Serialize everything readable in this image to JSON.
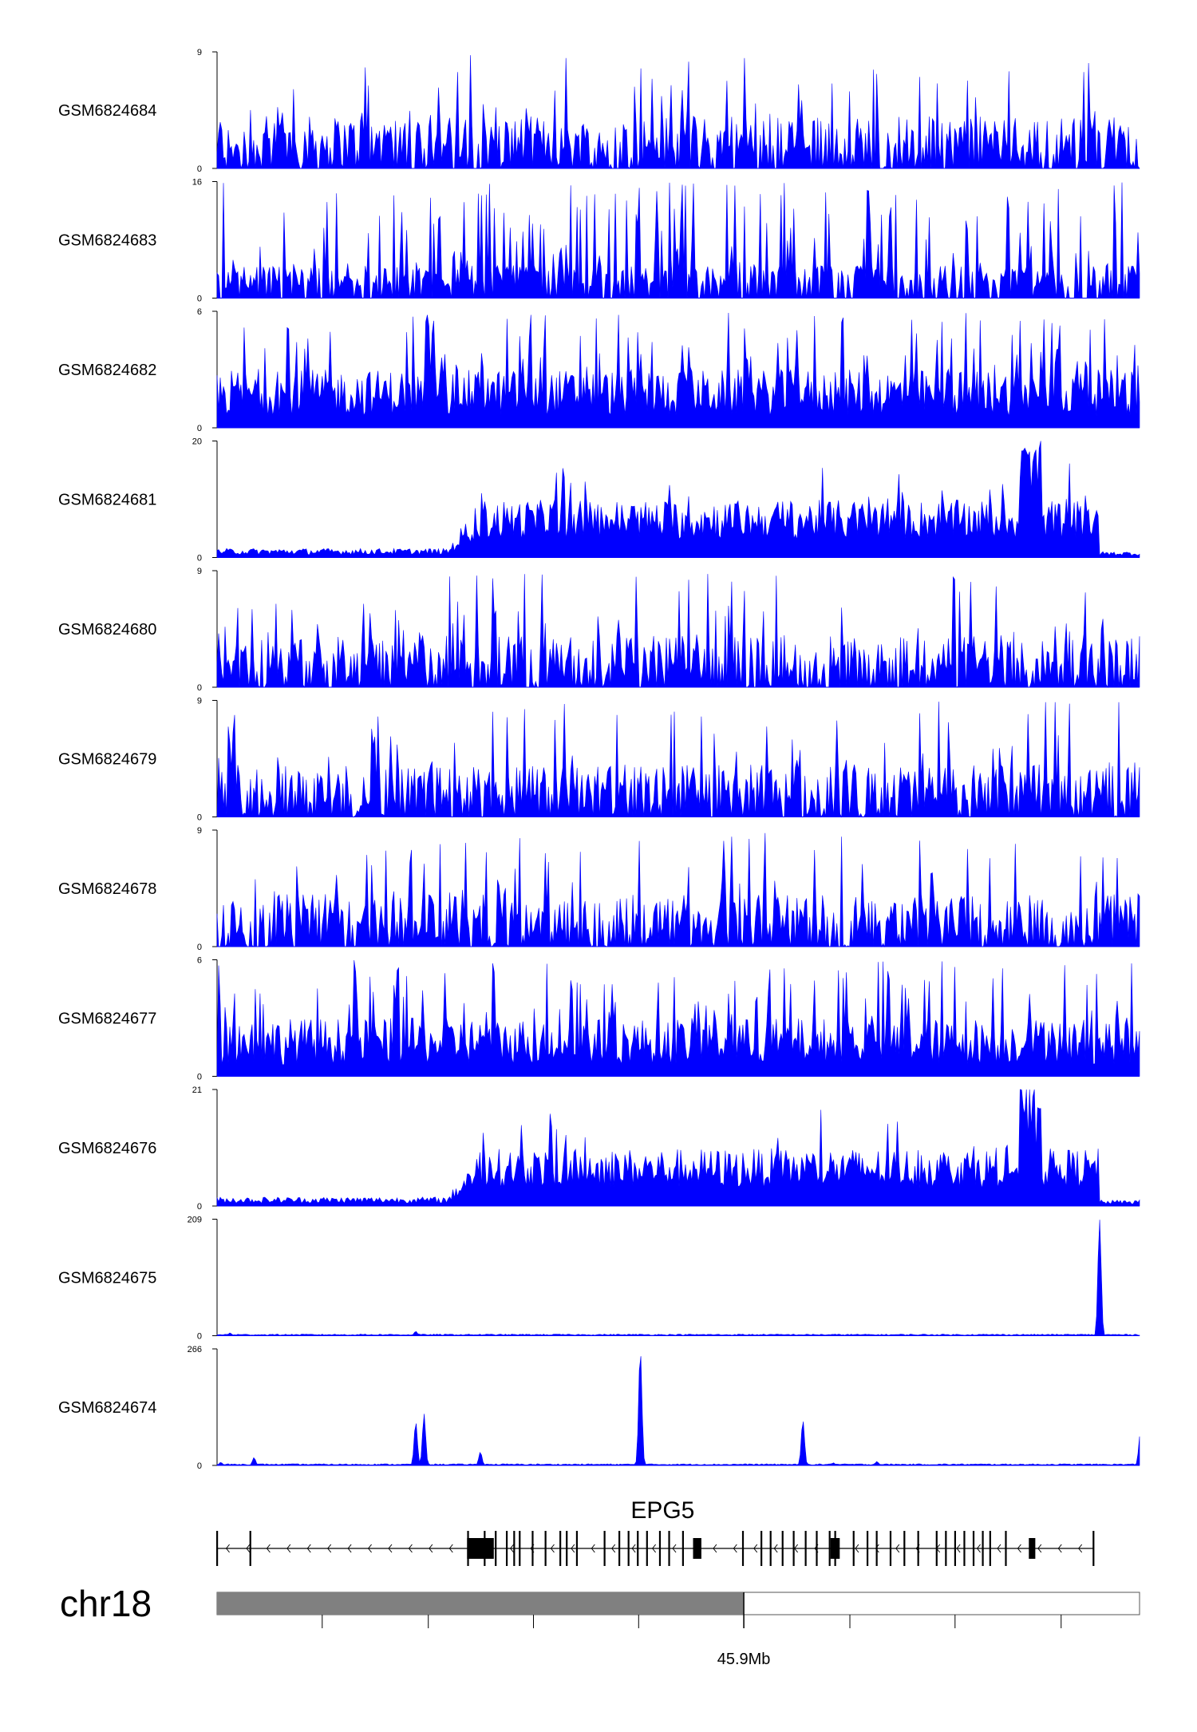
{
  "chart_data": {
    "type": "area",
    "title": "",
    "color": "#0000ff",
    "tracks": [
      {
        "name": "GSM6824684",
        "ymax": "9",
        "ymin": "0",
        "pattern": "spiky",
        "max": 9
      },
      {
        "name": "GSM6824683",
        "ymax": "16",
        "ymin": "0",
        "pattern": "sparse",
        "max": 16
      },
      {
        "name": "GSM6824682",
        "ymax": "6",
        "ymin": "0",
        "pattern": "dense",
        "max": 6
      },
      {
        "name": "GSM6824681",
        "ymax": "20",
        "ymin": "0",
        "pattern": "broad",
        "max": 20
      },
      {
        "name": "GSM6824680",
        "ymax": "9",
        "ymin": "0",
        "pattern": "spiky",
        "max": 9
      },
      {
        "name": "GSM6824679",
        "ymax": "9",
        "ymin": "0",
        "pattern": "spiky",
        "max": 9
      },
      {
        "name": "GSM6824678",
        "ymax": "9",
        "ymin": "0",
        "pattern": "spiky",
        "max": 9
      },
      {
        "name": "GSM6824677",
        "ymax": "6",
        "ymin": "0",
        "pattern": "dense",
        "max": 6
      },
      {
        "name": "GSM6824676",
        "ymax": "21",
        "ymin": "0",
        "pattern": "broad",
        "max": 21
      },
      {
        "name": "GSM6824675",
        "ymax": "209",
        "ymin": "0",
        "pattern": "peaks",
        "max": 209,
        "peaks": [
          [
            0.014,
            5
          ],
          [
            0.16,
            3
          ],
          [
            0.215,
            8
          ],
          [
            0.955,
            209
          ]
        ]
      },
      {
        "name": "GSM6824674",
        "ymax": "266",
        "ymin": "0",
        "pattern": "peaks",
        "max": 266,
        "peaks": [
          [
            0.004,
            7
          ],
          [
            0.04,
            18
          ],
          [
            0.215,
            100
          ],
          [
            0.224,
            118
          ],
          [
            0.285,
            31
          ],
          [
            0.458,
            266
          ],
          [
            0.634,
            104
          ],
          [
            0.667,
            6
          ],
          [
            0.714,
            9
          ],
          [
            0.999,
            72
          ]
        ]
      }
    ],
    "gene": {
      "name": "EPG5",
      "strand": "-",
      "exons": [
        0.0,
        0.036,
        0.272,
        0.29,
        0.302,
        0.314,
        0.322,
        0.328,
        0.342,
        0.356,
        0.372,
        0.379,
        0.39,
        0.42,
        0.436,
        0.446,
        0.456,
        0.466,
        0.48,
        0.49,
        0.505,
        0.57,
        0.59,
        0.6,
        0.613,
        0.625,
        0.638,
        0.65,
        0.664,
        0.67,
        0.69,
        0.705,
        0.715,
        0.73,
        0.745,
        0.76,
        0.78,
        0.79,
        0.8,
        0.81,
        0.82,
        0.83,
        0.838,
        0.855,
        0.95
      ],
      "big_exons": [
        [
          0.271,
          0.3
        ],
        [
          0.516,
          0.525
        ],
        [
          0.665,
          0.675
        ],
        [
          0.88,
          0.887
        ]
      ],
      "tx_start": 0.0,
      "tx_end": 0.95
    },
    "ideogram": {
      "chrom": "chr18",
      "position_label": "45.9Mb",
      "highlight_end": 0.571,
      "ticks": [
        0.114,
        0.229,
        0.343,
        0.457,
        0.571,
        0.686,
        0.8,
        0.915
      ]
    }
  }
}
